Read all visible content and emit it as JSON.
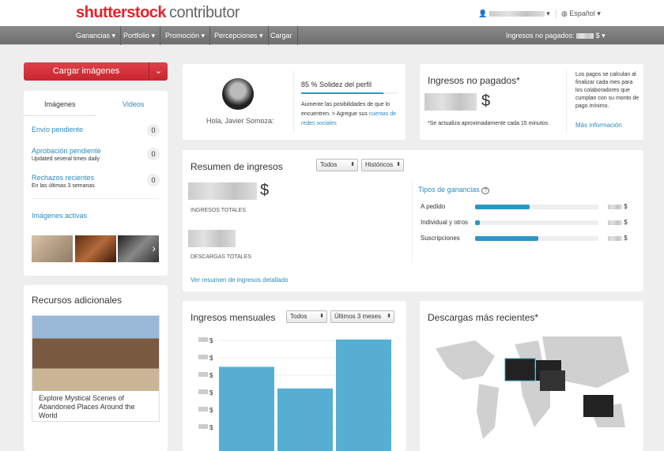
{
  "header": {
    "logo_brand": "shutterstock",
    "logo_suffix": "contributor",
    "user_icon": "user-icon",
    "language": "Español"
  },
  "nav": {
    "items": [
      "Ganancias ▾",
      "Portfolio ▾",
      "Promoción ▾",
      "Percepciones ▾",
      "Cargar"
    ],
    "unpaid_label": "Ingresos no pagados:",
    "unpaid_suffix": "$ ▾"
  },
  "sidebar": {
    "upload_button": "Cargar imágenes",
    "tabs": [
      "Imágenes",
      "Videos"
    ],
    "rows": [
      {
        "label": "Envío pendiente",
        "sub": "",
        "count": "0"
      },
      {
        "label": "Aprobación pendiente",
        "sub": "Updated several times daily",
        "count": "0"
      },
      {
        "label": "Rechazos recientes",
        "sub": "En las últimas 3 semanas",
        "count": "0"
      }
    ],
    "active_images": "Imágenes activas",
    "resources_title": "Recursos adicionales",
    "resource_caption": "Explore Mystical Scenes of Abandoned Places Around the World"
  },
  "profile": {
    "greeting": "Hola, Javier Somoza:",
    "strength": "85 % Solidez del perfil",
    "strength_percent": 85,
    "text": "Aumente las posibilidades de que lo encuentren. > Agregue sus ",
    "link": "cuentas de redes sociales"
  },
  "unpaid": {
    "title": "Ingresos no pagados*",
    "currency": "$",
    "note": "*Se actualiza aproximadamente cada 15 minutos.",
    "side_text": "Los pagos se calculan al finalizar cada mes para los colaboradores que cumplan con su monto de pago mínimo.",
    "more": "Más información"
  },
  "summary": {
    "title": "Resumen de ingresos",
    "filter1": "Todos",
    "filter2": "Históricos",
    "currency": "$",
    "total_label": "INGRESOS TOTALES",
    "downloads_label": "DESCARGAS TOTALES",
    "detail_link": "Ver resumen de ingresos detallado",
    "types_title": "Tipos de ganancias",
    "help_icon": "help-circle-icon",
    "types": [
      {
        "label": "A pedido",
        "percent": 44,
        "currency": "$"
      },
      {
        "label": "Individual y otros",
        "percent": 4,
        "currency": "$"
      },
      {
        "label": "Suscripciones",
        "percent": 51,
        "currency": "$"
      }
    ]
  },
  "monthly": {
    "title": "Ingresos mensuales",
    "filter1": "Todos",
    "filter2": "Últimos 3 meses",
    "tick_suffix": "$",
    "bar_color": "#56aed2"
  },
  "chart_data": {
    "type": "bar",
    "categories": [
      "",
      "",
      ""
    ],
    "values": [
      0.74,
      0.55,
      0.98
    ],
    "ylabel": "",
    "tick_labels": [
      "$",
      "$",
      "$",
      "$",
      "$",
      "$"
    ]
  },
  "recent": {
    "title": "Descargas más recientes*"
  }
}
